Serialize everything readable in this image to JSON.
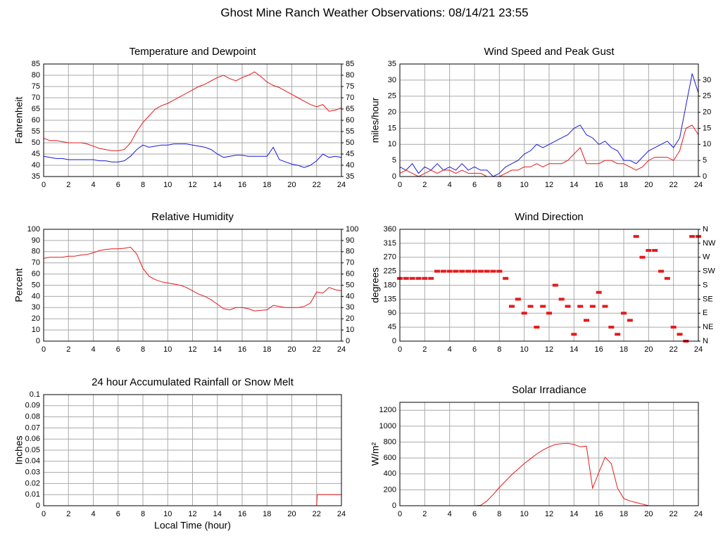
{
  "title": "Ghost Mine Ranch Weather Observations: 08/14/21 23:55",
  "chart_data": [
    {
      "type": "line",
      "title": "Temperature and Dewpoint",
      "y_label": "Fahrenheit",
      "x": [
        0,
        0.5,
        1,
        1.5,
        2,
        2.5,
        3,
        3.5,
        4,
        4.5,
        5,
        5.5,
        6,
        6.5,
        7,
        7.5,
        8,
        8.5,
        9,
        9.5,
        10,
        10.5,
        11,
        11.5,
        12,
        12.5,
        13,
        13.5,
        14,
        14.5,
        15,
        15.5,
        16,
        16.5,
        17,
        17.5,
        18,
        18.5,
        19,
        19.5,
        20,
        20.5,
        21,
        21.5,
        22,
        22.5,
        23,
        23.5,
        24
      ],
      "series": [
        {
          "color": "#e41a1c",
          "values": [
            52,
            51,
            51,
            50.5,
            50,
            50,
            50,
            49.5,
            48.5,
            47.5,
            47,
            46.5,
            46.5,
            47,
            50,
            55,
            59,
            62,
            65,
            66.5,
            67.5,
            69,
            70.5,
            72,
            73.5,
            75,
            76,
            77.5,
            79,
            80,
            78.5,
            77.5,
            79,
            80,
            81.5,
            79.5,
            77,
            75.5,
            74.5,
            73,
            71.5,
            70,
            68.5,
            67,
            66,
            67,
            64,
            64.5,
            65.5
          ]
        },
        {
          "color": "#1a1ad6",
          "values": [
            44,
            43.5,
            43,
            43,
            42.5,
            42.5,
            42.5,
            42.5,
            42.5,
            42,
            42,
            41.5,
            41.5,
            42,
            44,
            47,
            49,
            48,
            48.5,
            49,
            49,
            49.5,
            49.5,
            49.5,
            49,
            48.5,
            48,
            47,
            45,
            43.5,
            44,
            44.5,
            44.5,
            44,
            44,
            44,
            44,
            48,
            42.5,
            41.5,
            40.5,
            40,
            39,
            40,
            42,
            45,
            43.5,
            44,
            43.5
          ]
        }
      ],
      "xlim": [
        0,
        24
      ],
      "xticks": [
        0,
        2,
        4,
        6,
        8,
        10,
        12,
        14,
        16,
        18,
        20,
        22,
        24
      ],
      "ylim": [
        35,
        85
      ],
      "yticks": [
        35,
        40,
        45,
        50,
        55,
        60,
        65,
        70,
        75,
        80,
        85
      ],
      "y2ticks": [
        35,
        40,
        45,
        50,
        55,
        60,
        65,
        70,
        75,
        80,
        85
      ],
      "grid": true
    },
    {
      "type": "line",
      "title": "Wind Speed and Peak Gust",
      "y_label": "miles/hour",
      "x": [
        0,
        0.5,
        1,
        1.5,
        2,
        2.5,
        3,
        3.5,
        4,
        4.5,
        5,
        5.5,
        6,
        6.5,
        7,
        7.5,
        8,
        8.5,
        9,
        9.5,
        10,
        10.5,
        11,
        11.5,
        12,
        12.5,
        13,
        13.5,
        14,
        14.5,
        15,
        15.5,
        16,
        16.5,
        17,
        17.5,
        18,
        18.5,
        19,
        19.5,
        20,
        20.5,
        21,
        21.5,
        22,
        22.5,
        23,
        23.5,
        24
      ],
      "series": [
        {
          "color": "#1a1ad6",
          "values": [
            3,
            2,
            4,
            1,
            3,
            2,
            4,
            2,
            3,
            2,
            4,
            2,
            3,
            2,
            2,
            0,
            1,
            3,
            4,
            5,
            7,
            8,
            10,
            9,
            10,
            11,
            12,
            13,
            15,
            16,
            13,
            12,
            10,
            11,
            9,
            8,
            5,
            5,
            4,
            6,
            8,
            9,
            10,
            11,
            9,
            12,
            22,
            32,
            26
          ]
        },
        {
          "color": "#e41a1c",
          "values": [
            1,
            2,
            1,
            0,
            1,
            2,
            1,
            2,
            2,
            1,
            2,
            1,
            1,
            1,
            0,
            0,
            0,
            1,
            2,
            2,
            3,
            3,
            4,
            3,
            4,
            4,
            4,
            5,
            7,
            9,
            4,
            4,
            4,
            5,
            5,
            4,
            4,
            3,
            2,
            3,
            5,
            6,
            6,
            6,
            5,
            8,
            15,
            16,
            13
          ]
        }
      ],
      "xlim": [
        0,
        24
      ],
      "xticks": [
        0,
        2,
        4,
        6,
        8,
        10,
        12,
        14,
        16,
        18,
        20,
        22,
        24
      ],
      "ylim": [
        0,
        35
      ],
      "yticks": [
        0,
        5,
        10,
        15,
        20,
        25,
        30,
        35
      ],
      "y2ticks": [
        0,
        5,
        10,
        15,
        20,
        25,
        30
      ],
      "grid": true
    },
    {
      "type": "line",
      "title": "Relative Humidity",
      "y_label": "Percent",
      "x": [
        0,
        0.5,
        1,
        1.5,
        2,
        2.5,
        3,
        3.5,
        4,
        4.5,
        5,
        5.5,
        6,
        6.5,
        7,
        7.5,
        8,
        8.5,
        9,
        9.5,
        10,
        10.5,
        11,
        11.5,
        12,
        12.5,
        13,
        13.5,
        14,
        14.5,
        15,
        15.5,
        16,
        16.5,
        17,
        17.5,
        18,
        18.5,
        19,
        19.5,
        20,
        20.5,
        21,
        21.5,
        22,
        22.5,
        23,
        23.5,
        24
      ],
      "series": [
        {
          "color": "#e41a1c",
          "values": [
            74,
            75,
            75,
            75,
            76,
            76,
            77,
            77.5,
            79,
            81,
            82,
            82.5,
            82.5,
            83,
            84,
            78,
            65,
            58,
            55,
            53,
            52,
            51,
            50,
            48,
            45,
            42,
            40,
            37,
            33,
            29,
            28,
            30,
            30,
            29,
            27,
            27.5,
            28,
            32,
            31,
            30,
            30,
            30,
            31,
            34,
            44,
            43,
            48,
            46,
            45
          ]
        }
      ],
      "xlim": [
        0,
        24
      ],
      "xticks": [
        0,
        2,
        4,
        6,
        8,
        10,
        12,
        14,
        16,
        18,
        20,
        22,
        24
      ],
      "ylim": [
        0,
        100
      ],
      "yticks": [
        0,
        10,
        20,
        30,
        40,
        50,
        60,
        70,
        80,
        90,
        100
      ],
      "y2ticks": [
        0,
        10,
        20,
        30,
        40,
        50,
        60,
        70,
        80,
        90,
        100
      ],
      "grid": true
    },
    {
      "type": "scatter",
      "title": "Wind Direction",
      "y_label": "degrees",
      "x": [
        0,
        0.5,
        1,
        1.5,
        2,
        2.5,
        3,
        3.5,
        4,
        4.5,
        5,
        5.5,
        6,
        6.5,
        7,
        7.5,
        8,
        8.5,
        9,
        9.5,
        10,
        10.5,
        11,
        11.5,
        12,
        12.5,
        13,
        13.5,
        14,
        14.5,
        15,
        15.5,
        16,
        16.5,
        17,
        17.5,
        18,
        18.5,
        19,
        19.5,
        20,
        20.5,
        21,
        21.5,
        22,
        22.5,
        23,
        23.5,
        24
      ],
      "series": [
        {
          "color": "#e41a1c",
          "values": [
            202,
            202,
            202,
            202,
            202,
            202,
            225,
            225,
            225,
            225,
            225,
            225,
            225,
            225,
            225,
            225,
            225,
            202,
            112,
            135,
            90,
            112,
            45,
            112,
            90,
            180,
            135,
            112,
            22,
            112,
            67,
            112,
            157,
            112,
            45,
            22,
            90,
            67,
            337,
            270,
            292,
            292,
            225,
            202,
            45,
            22,
            0,
            337,
            337
          ]
        }
      ],
      "xlim": [
        0,
        24
      ],
      "xticks": [
        0,
        2,
        4,
        6,
        8,
        10,
        12,
        14,
        16,
        18,
        20,
        22,
        24
      ],
      "ylim": [
        0,
        360
      ],
      "yticks": [
        0,
        45,
        90,
        135,
        180,
        225,
        270,
        315,
        360
      ],
      "y2ticks": [
        {
          "value": 0,
          "label": "N"
        },
        {
          "value": 45,
          "label": "NE"
        },
        {
          "value": 90,
          "label": "E"
        },
        {
          "value": 135,
          "label": "SE"
        },
        {
          "value": 180,
          "label": "S"
        },
        {
          "value": 225,
          "label": "SW"
        },
        {
          "value": 270,
          "label": "W"
        },
        {
          "value": 315,
          "label": "NW"
        },
        {
          "value": 360,
          "label": "N"
        }
      ],
      "grid": true
    },
    {
      "type": "line",
      "title": "24 hour Accumulated Rainfall or Snow Melt",
      "y_label": "Inches",
      "x_label": "Local Time (hour)",
      "x": [
        0,
        22,
        22.05,
        24
      ],
      "series": [
        {
          "color": "#e41a1c",
          "values": [
            0,
            0,
            0.01,
            0.01
          ]
        }
      ],
      "xlim": [
        0,
        24
      ],
      "xticks": [
        0,
        2,
        4,
        6,
        8,
        10,
        12,
        14,
        16,
        18,
        20,
        22,
        24
      ],
      "ylim": [
        0,
        0.1
      ],
      "yticks": [
        0,
        0.01,
        0.02,
        0.03,
        0.04,
        0.05,
        0.06,
        0.07,
        0.08,
        0.09,
        0.1
      ],
      "grid": true
    },
    {
      "type": "line",
      "title": "Solar Irradiance",
      "y_label": "W/m²",
      "x": [
        0,
        0.5,
        1,
        1.5,
        2,
        2.5,
        3,
        3.5,
        4,
        4.5,
        5,
        5.5,
        6,
        6.5,
        7,
        7.5,
        8,
        8.5,
        9,
        9.5,
        10,
        10.5,
        11,
        11.5,
        12,
        12.5,
        13,
        13.5,
        14,
        14.5,
        15,
        15.5,
        16,
        16.5,
        17,
        17.5,
        18,
        18.5,
        19,
        19.5,
        20,
        20.5,
        21,
        21.5,
        22,
        22.5,
        23,
        23.5,
        24
      ],
      "series": [
        {
          "color": "#e41a1c",
          "values": [
            0,
            0,
            0,
            0,
            0,
            0,
            0,
            0,
            0,
            0,
            0,
            0,
            0,
            5,
            60,
            140,
            230,
            310,
            390,
            460,
            530,
            590,
            650,
            700,
            740,
            770,
            780,
            785,
            770,
            740,
            750,
            220,
            420,
            610,
            530,
            220,
            90,
            60,
            40,
            20,
            0,
            0,
            0,
            0,
            0,
            0,
            0,
            0,
            0
          ]
        }
      ],
      "xlim": [
        0,
        24
      ],
      "xticks": [
        0,
        2,
        4,
        6,
        8,
        10,
        12,
        14,
        16,
        18,
        20,
        22,
        24
      ],
      "ylim": [
        0,
        1300
      ],
      "yticks": [
        0,
        200,
        400,
        600,
        800,
        1000,
        1200
      ],
      "grid": true
    }
  ]
}
